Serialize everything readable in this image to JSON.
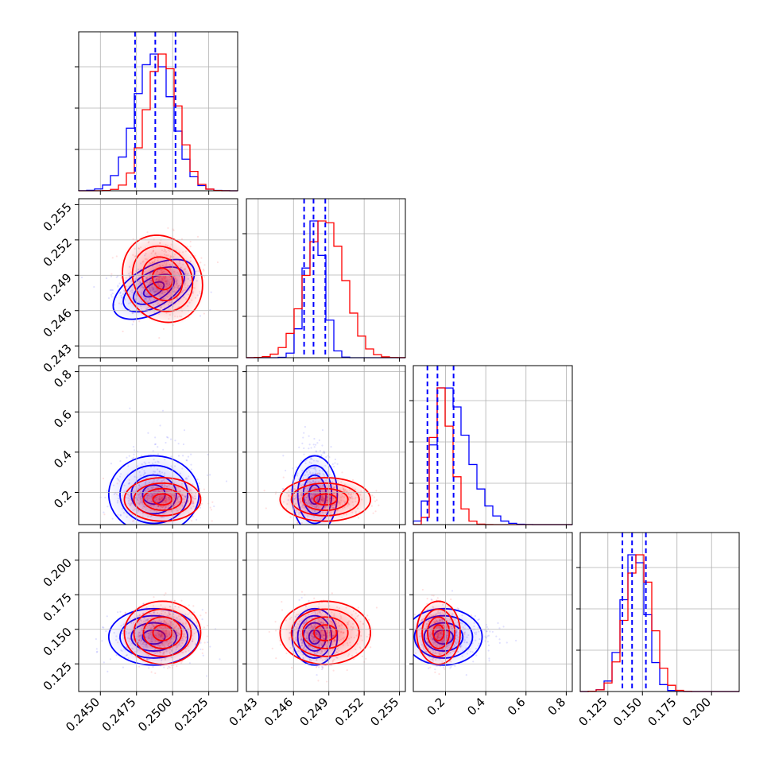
{
  "colors": {
    "series_a": "#0000ff",
    "series_b": "#ff0000",
    "grid": "#b0b0b0"
  },
  "chart_data": {
    "type": "corner",
    "grid": true,
    "series": [
      {
        "color": "#0000ff"
      },
      {
        "color": "#ff0000"
      }
    ],
    "params": [
      {
        "index": 0,
        "range": [
          0.2435,
          0.2545
        ],
        "ticks": [
          0.245,
          0.2475,
          0.25,
          0.2525
        ],
        "tick_labels": [
          "0.2450",
          "0.2475",
          "0.2500",
          "0.2525"
        ],
        "quantiles": [
          0.2474,
          0.2488,
          0.2502
        ],
        "blue": {
          "mean": 0.2487,
          "sd": 0.0013
        },
        "red": {
          "mean": 0.2493,
          "sd": 0.0011
        },
        "hist_max": 1.0
      },
      {
        "index": 1,
        "range": [
          0.242,
          0.2555
        ],
        "ticks": [
          0.243,
          0.246,
          0.249,
          0.252,
          0.255
        ],
        "tick_labels": [
          "0.243",
          "0.246",
          "0.249",
          "0.252",
          "0.255"
        ],
        "quantiles": [
          0.2469,
          0.2477,
          0.2487
        ],
        "blue": {
          "mean": 0.2478,
          "sd": 0.0008
        },
        "red": {
          "mean": 0.2487,
          "sd": 0.0016
        },
        "hist_max": 1.0
      },
      {
        "index": 2,
        "range": [
          0.04,
          0.83
        ],
        "ticks": [
          0.2,
          0.4,
          0.6,
          0.8
        ],
        "tick_labels": [
          "0.2",
          "0.4",
          "0.6",
          "0.8"
        ],
        "quantiles": [
          0.11,
          0.16,
          0.24
        ],
        "blue": {
          "mean": 0.19,
          "sd": 0.08
        },
        "red": {
          "mean": 0.165,
          "sd": 0.045
        },
        "hist_max": 1.0
      },
      {
        "index": 3,
        "range": [
          0.105,
          0.22
        ],
        "ticks": [
          0.125,
          0.15,
          0.175,
          0.2
        ],
        "tick_labels": [
          "0.125",
          "0.150",
          "0.175",
          "0.200"
        ],
        "quantiles": [
          0.1355,
          0.1425,
          0.1525
        ],
        "blue": {
          "mean": 0.1445,
          "sd": 0.0085
        },
        "red": {
          "mean": 0.1475,
          "sd": 0.0095
        },
        "hist_max": 1.0
      }
    ]
  }
}
